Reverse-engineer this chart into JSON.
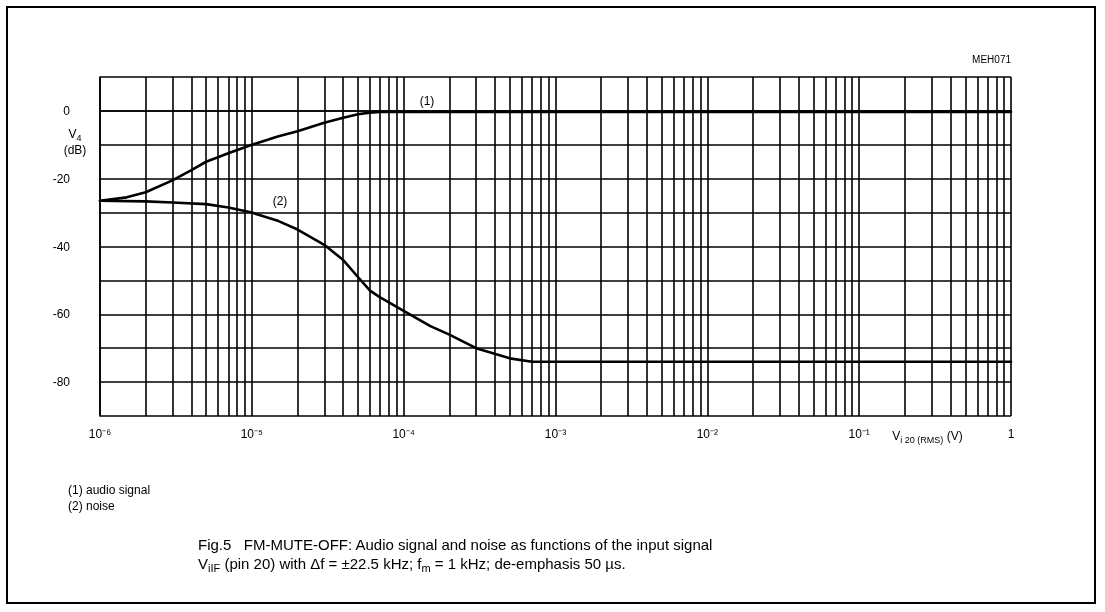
{
  "chart_data": {
    "type": "line",
    "title": "Fig.5   FM-MUTE-OFF: Audio signal and noise as functions of the input signal\nV$_{iIF}$ (pin 20) with Δf = ±22.5 kHz; f$_{m}$ = 1 kHz; de-emphasis 50 µs.",
    "xlabel": "V$_{i 20 (RMS)}$ (V)",
    "ylabel": "V$_{4}$\n(dB)",
    "log": "x",
    "grid": true,
    "marker": "none",
    "line_style": "solid",
    "xlim": [
      1e-06,
      1
    ],
    "ylim": [
      -90,
      10
    ],
    "xticks": [
      {
        "value": 1e-06,
        "label": "10⁻⁶"
      },
      {
        "value": 2e-06,
        "label": null
      },
      {
        "value": 3e-06,
        "label": null
      },
      {
        "value": 4e-06,
        "label": null
      },
      {
        "value": 5e-06,
        "label": null
      },
      {
        "value": 6e-06,
        "label": null
      },
      {
        "value": 7e-06,
        "label": null
      },
      {
        "value": 8e-06,
        "label": null
      },
      {
        "value": 9e-06,
        "label": null
      },
      {
        "value": 1e-05,
        "label": "10⁻⁵"
      },
      {
        "value": 2e-05,
        "label": null
      },
      {
        "value": 3e-05,
        "label": null
      },
      {
        "value": 4e-05,
        "label": null
      },
      {
        "value": 5e-05,
        "label": null
      },
      {
        "value": 6e-05,
        "label": null
      },
      {
        "value": 7e-05,
        "label": null
      },
      {
        "value": 8e-05,
        "label": null
      },
      {
        "value": 9e-05,
        "label": null
      },
      {
        "value": 0.0001,
        "label": "10⁻⁴"
      },
      {
        "value": 0.0002,
        "label": null
      },
      {
        "value": 0.0003,
        "label": null
      },
      {
        "value": 0.0004,
        "label": null
      },
      {
        "value": 0.0005,
        "label": null
      },
      {
        "value": 0.0006,
        "label": null
      },
      {
        "value": 0.0007,
        "label": null
      },
      {
        "value": 0.0008,
        "label": null
      },
      {
        "value": 0.0009,
        "label": null
      },
      {
        "value": 0.001,
        "label": "10⁻³"
      },
      {
        "value": 0.002,
        "label": null
      },
      {
        "value": 0.003,
        "label": null
      },
      {
        "value": 0.004,
        "label": null
      },
      {
        "value": 0.005,
        "label": null
      },
      {
        "value": 0.006,
        "label": null
      },
      {
        "value": 0.007,
        "label": null
      },
      {
        "value": 0.008,
        "label": null
      },
      {
        "value": 0.009,
        "label": null
      },
      {
        "value": 0.01,
        "label": "10⁻²"
      },
      {
        "value": 0.02,
        "label": null
      },
      {
        "value": 0.03,
        "label": null
      },
      {
        "value": 0.04,
        "label": null
      },
      {
        "value": 0.05,
        "label": null
      },
      {
        "value": 0.06,
        "label": null
      },
      {
        "value": 0.07,
        "label": null
      },
      {
        "value": 0.08,
        "label": null
      },
      {
        "value": 0.09,
        "label": null
      },
      {
        "value": 0.1,
        "label": "10⁻¹"
      },
      {
        "value": 0.2,
        "label": null
      },
      {
        "value": 0.3,
        "label": null
      },
      {
        "value": 0.4,
        "label": null
      },
      {
        "value": 0.5,
        "label": null
      },
      {
        "value": 0.6,
        "label": null
      },
      {
        "value": 0.7,
        "label": null
      },
      {
        "value": 0.8,
        "label": null
      },
      {
        "value": 0.9,
        "label": null
      },
      {
        "value": 1,
        "label": "1"
      }
    ],
    "yticks": [
      {
        "value": -90,
        "label": null
      },
      -80,
      {
        "value": -70,
        "label": null
      },
      -60,
      {
        "value": -50,
        "label": null
      },
      -40,
      {
        "value": -30,
        "label": null
      },
      -20,
      {
        "value": -10,
        "label": null
      },
      0,
      {
        "value": 10,
        "label": null
      }
    ],
    "series": [
      {
        "color": "#000000",
        "x": [
          1e-06,
          1.5e-06,
          2e-06,
          3e-06,
          4e-06,
          5e-06,
          7e-06,
          1e-05,
          1.5e-05,
          2e-05,
          3e-05,
          4e-05,
          5e-05,
          6e-05,
          7e-05,
          0.0001,
          0.001,
          0.01,
          0.1,
          1
        ],
        "values": [
          -26.5,
          -25.5,
          -24,
          -20.5,
          -17.5,
          -15,
          -12.5,
          -10,
          -7.5,
          -6,
          -3.5,
          -2,
          -1,
          -0.5,
          -0.3,
          -0.3,
          -0.3,
          -0.3,
          -0.3,
          -0.3
        ]
      },
      {
        "color": "#000000",
        "x": [
          1e-06,
          2e-06,
          3e-06,
          5e-06,
          7e-06,
          1e-05,
          1.5e-05,
          2e-05,
          3e-05,
          4e-05,
          5e-05,
          6e-05,
          7e-05,
          0.0001,
          0.00015,
          0.0002,
          0.0003,
          0.0005,
          0.0007,
          0.001,
          0.01,
          0.1,
          1
        ],
        "values": [
          -26.5,
          -26.7,
          -27,
          -27.5,
          -28.5,
          -30,
          -32.5,
          -35,
          -39.5,
          -44,
          -49,
          -53,
          -55,
          -59,
          -63.5,
          -66,
          -70,
          -73,
          -74,
          -74,
          -74,
          -74,
          -74
        ]
      }
    ],
    "annotations": [
      "(1)",
      "(2)",
      "MEH071",
      "(1) audio signal\n(2) noise"
    ]
  }
}
